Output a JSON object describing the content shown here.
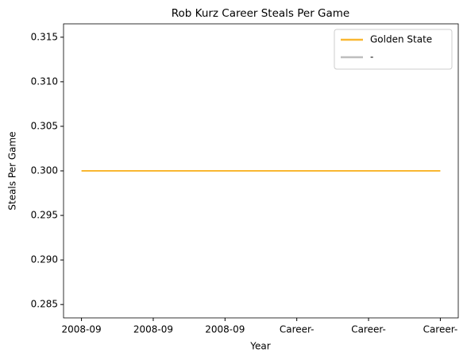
{
  "chart_data": {
    "type": "line",
    "title": "Rob Kurz Career Steals Per Game",
    "xlabel": "Year",
    "ylabel": "Steals Per Game",
    "categories": [
      "2008-09",
      "2008-09",
      "2008-09",
      "Career-",
      "Career-",
      "Career-"
    ],
    "series": [
      {
        "name": "Golden State",
        "color": "#f9b731",
        "values": [
          0.3,
          0.3,
          0.3,
          0.3,
          0.3,
          0.3
        ]
      },
      {
        "name": "-",
        "color": "#bebebe",
        "values": [
          null,
          null,
          null,
          null,
          null,
          null
        ]
      }
    ],
    "ylim": [
      0.2835,
      0.3165
    ],
    "yticks": [
      0.285,
      {
        "value": 0.29,
        "label": "0.290"
      },
      0.295,
      {
        "value": 0.3,
        "label": "0.300"
      },
      0.305,
      {
        "value": 0.31,
        "label": "0.310"
      },
      0.315
    ],
    "legend": "upper right"
  }
}
